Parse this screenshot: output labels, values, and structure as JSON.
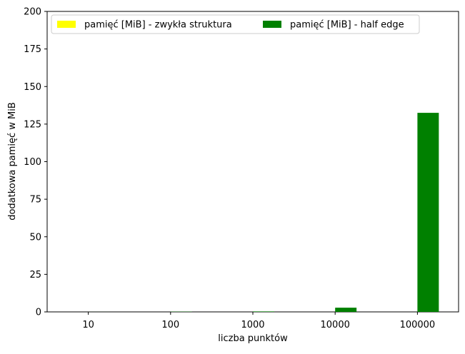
{
  "chart_data": {
    "type": "bar",
    "categories": [
      "10",
      "100",
      "1000",
      "10000",
      "100000"
    ],
    "series": [
      {
        "name": "pamięć [MiB] - zwykła struktura",
        "color": "#ffff00",
        "values": [
          0,
          0,
          0,
          0,
          0
        ]
      },
      {
        "name": "pamięć [MiB] - half edge",
        "color": "#008000",
        "values": [
          0.02,
          0.15,
          0.3,
          2.8,
          132.5
        ]
      }
    ],
    "title": "",
    "xlabel": "liczba punktów",
    "ylabel": "dodatkowa pamięć w MiB",
    "ylim": [
      0,
      200
    ],
    "yticks": [
      0,
      25,
      50,
      75,
      100,
      125,
      150,
      175,
      200
    ],
    "grid": false,
    "legend": "top, two columns"
  }
}
